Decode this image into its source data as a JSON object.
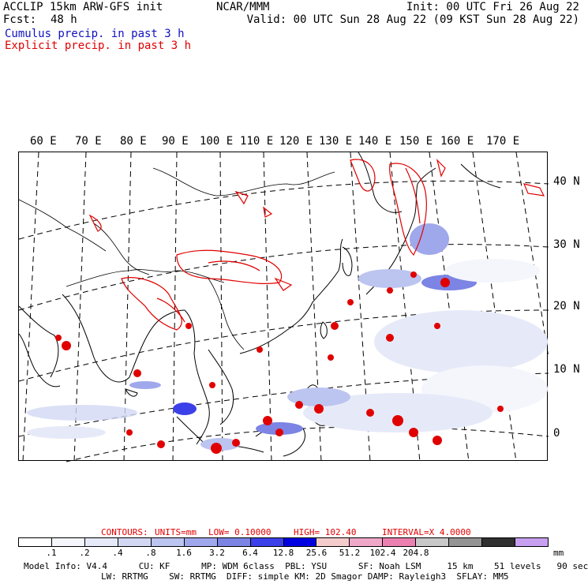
{
  "header": {
    "left_line1": "ACCLIP 15km ARW-GFS init",
    "left_line2_label": "Fcst:",
    "left_line2_value": "48 h",
    "center": "NCAR/MMM",
    "right_line1": "Init: 00 UTC Fri 26 Aug 22",
    "right_line2": "Valid: 00 UTC Sun 28 Aug 22 (09 KST Sun 28 Aug 22)",
    "legend_cumulus": "Cumulus precip. in past 3 h",
    "legend_explicit": "Explicit precip. in past 3 h",
    "cumulus_color": "#2020c0",
    "explicit_color": "#e00000"
  },
  "map": {
    "longitude_labels": [
      "60 E",
      "70 E",
      "80 E",
      "90 E",
      "100 E",
      "110 E",
      "120 E",
      "130 E",
      "140 E",
      "150 E",
      "160 E",
      "170 E"
    ],
    "latitude_labels": [
      "40 N",
      "30 N",
      "20 N",
      "10 N",
      "0"
    ]
  },
  "contours": {
    "label": "CONTOURS:",
    "units": "UNITS=mm",
    "low": "LOW= 0.10000",
    "high": "HIGH= 102.40",
    "interval": "INTERVAL=X 4.0000"
  },
  "colorbar": {
    "colors": [
      "#ffffff",
      "#f4f6fc",
      "#e6eaf8",
      "#d2d8f4",
      "#bcc4f0",
      "#a0a8ec",
      "#7c84e4",
      "#3c40e8",
      "#0000e0",
      "#f4cccc",
      "#f0a8c8",
      "#ec80b0",
      "#c8c8c8",
      "#949494",
      "#303030",
      "#c8a0f0"
    ],
    "tick_labels": [
      ".1",
      ".2",
      ".4",
      ".8",
      "1.6",
      "3.2",
      "6.4",
      "12.8",
      "25.6",
      "51.2",
      "102.4",
      "204.8"
    ],
    "unit": "mm"
  },
  "footer": {
    "line1": "Model Info: V4.4      CU: KF      MP: WDM 6class  PBL: YSU      SF: Noah LSM     15 km    51 levels   90 sec",
    "line2": "LW: RRTMG    SW: RRTMG  DIFF: simple KM: 2D Smagor DAMP: Rayleigh3  SFLAY: MM5"
  }
}
